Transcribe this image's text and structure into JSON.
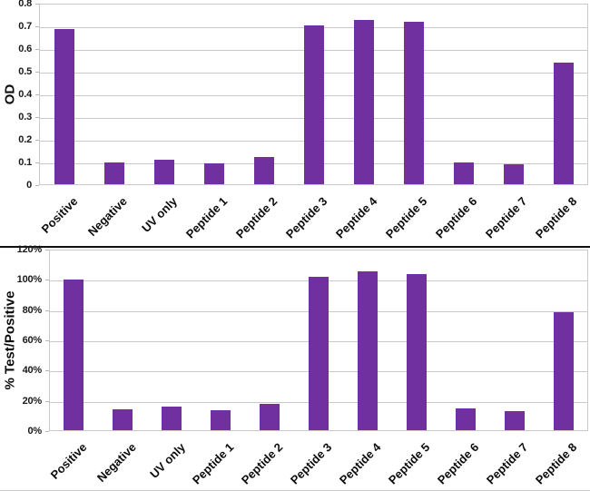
{
  "style": {
    "background": "#ffffff",
    "bar_color": "#7030A0",
    "gridline_color": "#c9c9c9",
    "axis_text_color": "#1a1a1a",
    "divider_color": "#111111"
  },
  "chart_data": [
    {
      "type": "bar",
      "title": "",
      "xlabel": "",
      "ylabel": "OD",
      "legend": "none",
      "grid": true,
      "categories": [
        "Positive",
        "Negative",
        "UV only",
        "Peptide 1",
        "Peptide 2",
        "Peptide 3",
        "Peptide 4",
        "Peptide 5",
        "Peptide 6",
        "Peptide 7",
        "Peptide 8"
      ],
      "values": [
        0.69,
        0.1,
        0.112,
        0.096,
        0.125,
        0.705,
        0.73,
        0.72,
        0.1,
        0.093,
        0.54
      ],
      "ylim": [
        0,
        0.8
      ],
      "ytick_values": [
        0,
        0.1,
        0.2,
        0.3,
        0.4,
        0.5,
        0.6,
        0.7,
        0.8
      ],
      "ytick_labels": [
        "0",
        "0.1",
        "0.2",
        "0.3",
        "0.4",
        "0.5",
        "0.6",
        "0.7",
        "0.8"
      ]
    },
    {
      "type": "bar",
      "title": "",
      "xlabel": "",
      "ylabel": "% Test/Positive",
      "legend": "none",
      "grid": true,
      "categories": [
        "Positive",
        "Negative",
        "UV only",
        "Peptide 1",
        "Peptide 2",
        "Peptide 3",
        "Peptide 4",
        "Peptide 5",
        "Peptide 6",
        "Peptide 7",
        "Peptide 8"
      ],
      "values": [
        100,
        14.5,
        16.3,
        14,
        18,
        102,
        105.5,
        104,
        15,
        13.5,
        78.5
      ],
      "ylim": [
        0,
        120
      ],
      "ytick_values": [
        0,
        20,
        40,
        60,
        80,
        100,
        120
      ],
      "ytick_labels": [
        "0%",
        "20%",
        "40%",
        "60%",
        "80%",
        "100%",
        "120%"
      ]
    }
  ]
}
